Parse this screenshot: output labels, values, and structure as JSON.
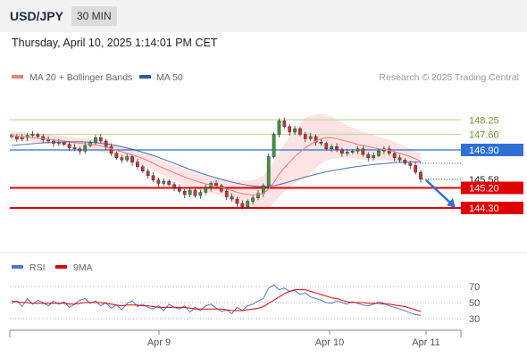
{
  "header": {
    "pair": "USD/JPY",
    "timeframe": "30 MIN"
  },
  "datetime": "Thursday, April 10, 2025 1:14:01 PM CET",
  "legend": {
    "bollinger": "MA 20 + Bollinger Bands",
    "ma50": "MA 50",
    "credit": "Research © 2025 Trading Central",
    "rsi": "RSI",
    "rsi_ma": "9MA"
  },
  "colors": {
    "bollinger": "#f08080",
    "band_fill": "#fde0e0",
    "ma50": "#2d5a9e",
    "up": "#3c9a3c",
    "down": "#d03030",
    "support": "#e00000",
    "resistance": "#c5d9a5",
    "pivot": "#2f6fd6",
    "arrow": "#2f6fd6",
    "rsi": "#4a78d0",
    "rsi_ma": "#e00000"
  },
  "chart_data": {
    "type": "candlestick",
    "y_range": [
      143.3,
      149.3
    ],
    "x_labels": [
      "Apr 9",
      "Apr 10",
      "Apr 11"
    ],
    "levels": [
      {
        "value": 148.25,
        "label": "148.25",
        "kind": "resistance"
      },
      {
        "value": 147.6,
        "label": "147.60",
        "kind": "resistance"
      },
      {
        "value": 146.9,
        "label": "146.90",
        "kind": "pivot"
      },
      {
        "value": 145.58,
        "label": "145.58",
        "kind": "last"
      },
      {
        "value": 145.2,
        "label": "145.20",
        "kind": "support"
      },
      {
        "value": 144.3,
        "label": "144.30",
        "kind": "support"
      }
    ],
    "closes": [
      147.5,
      147.4,
      147.45,
      147.55,
      147.6,
      147.5,
      147.35,
      147.3,
      147.2,
      147.25,
      147.15,
      147.0,
      146.95,
      146.85,
      147.1,
      147.25,
      147.45,
      147.3,
      147.05,
      146.75,
      146.55,
      146.45,
      146.6,
      146.35,
      146.15,
      145.95,
      145.75,
      145.55,
      145.4,
      145.5,
      145.35,
      145.2,
      145.05,
      144.9,
      145.1,
      144.85,
      145.0,
      145.2,
      145.4,
      145.3,
      145.05,
      144.8,
      144.7,
      144.5,
      144.35,
      144.6,
      144.75,
      144.95,
      145.3,
      146.6,
      147.6,
      148.2,
      147.95,
      147.7,
      147.85,
      147.6,
      147.4,
      147.5,
      147.25,
      147.2,
      146.95,
      147.05,
      146.9,
      146.75,
      146.8,
      146.85,
      146.95,
      146.7,
      146.55,
      146.65,
      146.85,
      146.95,
      146.75,
      146.55,
      146.45,
      146.3,
      146.2,
      145.9,
      145.6
    ],
    "ma20": [
      147.55,
      147.52,
      147.5,
      147.48,
      147.45,
      147.42,
      147.4,
      147.38,
      147.35,
      147.32,
      147.3,
      147.26,
      147.22,
      147.2,
      147.18,
      147.16,
      147.12,
      147.08,
      147.02,
      146.95,
      146.88,
      146.82,
      146.75,
      146.68,
      146.6,
      146.52,
      146.42,
      146.3,
      146.18,
      146.08,
      145.98,
      145.88,
      145.78,
      145.68,
      145.6,
      145.52,
      145.45,
      145.38,
      145.32,
      145.28,
      145.22,
      145.15,
      145.08,
      145.0,
      144.95,
      144.9,
      144.88,
      144.9,
      144.95,
      145.15,
      145.45,
      145.8,
      146.1,
      146.35,
      146.6,
      146.8,
      147.0,
      147.15,
      147.3,
      147.4,
      147.45,
      147.45,
      147.4,
      147.35,
      147.28,
      147.22,
      147.15,
      147.1,
      147.05,
      147.0,
      146.95,
      146.92,
      146.88,
      146.82,
      146.75,
      146.68,
      146.6,
      146.5,
      146.4
    ],
    "ma50": [
      147.1,
      147.12,
      147.14,
      147.16,
      147.18,
      147.2,
      147.22,
      147.23,
      147.24,
      147.25,
      147.26,
      147.27,
      147.27,
      147.27,
      147.26,
      147.25,
      147.23,
      147.2,
      147.17,
      147.13,
      147.09,
      147.04,
      146.99,
      146.93,
      146.87,
      146.8,
      146.73,
      146.65,
      146.57,
      146.48,
      146.39,
      146.3,
      146.21,
      146.12,
      146.03,
      145.95,
      145.87,
      145.79,
      145.72,
      145.65,
      145.58,
      145.52,
      145.46,
      145.41,
      145.36,
      145.32,
      145.29,
      145.27,
      145.26,
      145.27,
      145.3,
      145.35,
      145.41,
      145.48,
      145.55,
      145.62,
      145.69,
      145.75,
      145.81,
      145.87,
      145.92,
      145.97,
      146.01,
      146.05,
      146.09,
      146.13,
      146.16,
      146.19,
      146.22,
      146.25,
      146.27,
      146.29,
      146.31,
      146.33,
      146.34,
      146.35,
      146.36,
      146.36,
      146.36
    ],
    "rsi_axis": {
      "range": [
        20,
        80
      ],
      "ticks": [
        70,
        50,
        30
      ]
    },
    "rsi": [
      49,
      52,
      45,
      55,
      48,
      53,
      50,
      46,
      52,
      48,
      51,
      44,
      48,
      53,
      55,
      49,
      52,
      46,
      50,
      43,
      47,
      41,
      49,
      52,
      45,
      48,
      44,
      42,
      46,
      40,
      48,
      44,
      42,
      46,
      38,
      44,
      40,
      46,
      48,
      43,
      39,
      41,
      36,
      44,
      40,
      46,
      48,
      52,
      55,
      68,
      72,
      66,
      68,
      64,
      65,
      60,
      62,
      57,
      55,
      53,
      50,
      49,
      52,
      50,
      48,
      51,
      49,
      47,
      46,
      48,
      51,
      49,
      46,
      44,
      42,
      40,
      37,
      35,
      34
    ],
    "rsi_ma": [
      52,
      51,
      50,
      50,
      49,
      49,
      49,
      49,
      49,
      49,
      49,
      48,
      48,
      49,
      50,
      50,
      50,
      50,
      49,
      48,
      47,
      46,
      47,
      47,
      47,
      46,
      46,
      45,
      44,
      44,
      44,
      44,
      44,
      44,
      43,
      42,
      42,
      42,
      42,
      42,
      42,
      41,
      40,
      40,
      40,
      41,
      42,
      43,
      45,
      49,
      53,
      57,
      61,
      64,
      66,
      66,
      66,
      64,
      62,
      60,
      58,
      56,
      55,
      53,
      51,
      50,
      50,
      50,
      49,
      49,
      49,
      48,
      48,
      47,
      46,
      45,
      43,
      41,
      39
    ]
  }
}
